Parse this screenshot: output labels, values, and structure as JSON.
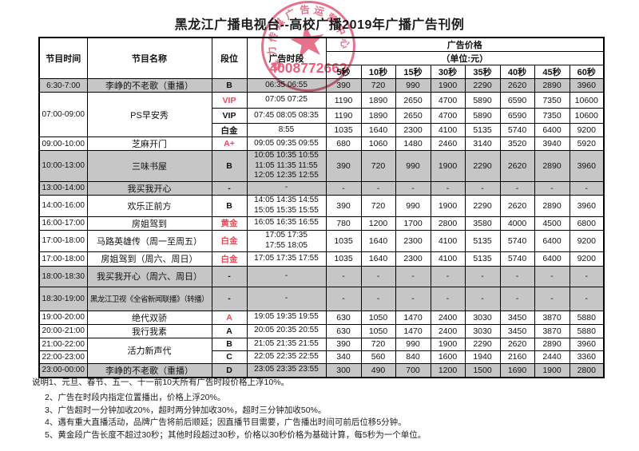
{
  "page_title": "黑龙江广播电视台--高校广播2019年广播广告刊例",
  "stamp": {
    "ring_text": "媒力传媒广告运营中心",
    "phone": "4008772662",
    "color": "#e0607a"
  },
  "table": {
    "headers": {
      "time": "节目时间",
      "name": "节目名称",
      "tier": "段位",
      "slot": "广告时段",
      "price_group": "广告价格",
      "price_unit": "（单位:元）",
      "durations": [
        "5秒",
        "10秒",
        "15秒",
        "30秒",
        "35秒",
        "40秒",
        "45秒",
        "60秒"
      ]
    },
    "rows": [
      {
        "time": "6:30-7:00",
        "name": "李峥的不老歌（重播）",
        "tier": "B",
        "slots": [
          "06:35  06:55"
        ],
        "prices": [
          "390",
          "720",
          "990",
          "1900",
          "2290",
          "2620",
          "2890",
          "3960"
        ],
        "shaded": true,
        "group": true
      },
      {
        "time": "07:00-09:00",
        "time_span": 3,
        "name": "PS早安秀",
        "name_span": 3,
        "tier": "VIP",
        "tier_red": true,
        "slots": [
          "07:05  07:25"
        ],
        "prices": [
          "1190",
          "1890",
          "2650",
          "4700",
          "5890",
          "6590",
          "7350",
          "10600"
        ],
        "group": true
      },
      {
        "tier": "VIP",
        "slots": [
          "07:45 08:05 08:35"
        ],
        "prices": [
          "1190",
          "1890",
          "2650",
          "4700",
          "5890",
          "6590",
          "7350",
          "10600"
        ]
      },
      {
        "tier": "白金",
        "slots": [
          "8:55"
        ],
        "prices": [
          "1035",
          "1640",
          "2300",
          "4100",
          "5135",
          "5740",
          "6400",
          "9200"
        ]
      },
      {
        "time": "09:00-10:00",
        "name": "芝麻开门",
        "tier": "A+",
        "tier_red": true,
        "slots": [
          "09:05 09:35 09:55"
        ],
        "prices": [
          "680",
          "1060",
          "1480",
          "2460",
          "3140",
          "3520",
          "3940",
          "5920"
        ],
        "group": true
      },
      {
        "time": "10:00-13:00",
        "name": "三味书屋",
        "tier": "B",
        "slots": [
          "10:05 10:35 10:55",
          "11:05 11:35 11:55",
          "12:05 12:35 12:55"
        ],
        "prices": [
          "390",
          "720",
          "990",
          "1900",
          "2290",
          "2620",
          "2890",
          "3960"
        ],
        "shaded": true,
        "group": true
      },
      {
        "time": "13:00-14:00",
        "name": "我买我开心",
        "tier": "-",
        "slots": [
          "-"
        ],
        "prices": [
          "-",
          "-",
          "-",
          "-",
          "-",
          "-",
          "-",
          "-"
        ],
        "shaded": true,
        "group": true
      },
      {
        "time": "14:00-16:00",
        "name": "欢乐正前方",
        "tier": "B",
        "slots": [
          "14:05 14:35 14:55",
          "15:05  15:35 15:55"
        ],
        "prices": [
          "390",
          "720",
          "990",
          "1900",
          "2290",
          "2620",
          "2890",
          "3960"
        ],
        "group": true
      },
      {
        "time": "16:00-17:00",
        "name": "房姐驾到",
        "tier": "黄金",
        "tier_red": true,
        "slots": [
          "16:05 16:35  16:55"
        ],
        "prices": [
          "780",
          "1200",
          "1700",
          "2800",
          "3580",
          "4000",
          "4500",
          "6800"
        ],
        "group": true
      },
      {
        "time": "17:00-18:00",
        "name": "马路英雄传（周一至周五）",
        "tier": "白金",
        "tier_red": true,
        "slots": [
          "17:05  17:35",
          "17:55  18:05"
        ],
        "prices": [
          "1035",
          "1640",
          "2300",
          "4100",
          "5135",
          "5740",
          "6400",
          "9200"
        ],
        "group": true
      },
      {
        "time": "17:00-18:00",
        "name": "房姐驾到（周六、周日）",
        "tier": "白金",
        "tier_red": true,
        "slots": [
          "17:05 17:35 17:55"
        ],
        "prices": [
          "1035",
          "1640",
          "2300",
          "4100",
          "5135",
          "5740",
          "6400",
          "9200"
        ],
        "group": true
      },
      {
        "time": "18:00-18:30",
        "name": "我买我开心（周六、周日）",
        "tier": "-",
        "slots": [
          "-"
        ],
        "prices": [
          "-",
          "-",
          "-",
          "-",
          "-",
          "-",
          "-",
          "-"
        ],
        "shaded": true,
        "group": true
      },
      {
        "time": "18:30-19:00",
        "name": "黑龙江卫视《全省新闻联播》（转播）",
        "name_small": true,
        "tier": "-",
        "slots": [
          "-"
        ],
        "prices": [
          "-",
          "-",
          "-",
          "-",
          "-",
          "-",
          "-",
          "-"
        ],
        "shaded": true,
        "group": true
      },
      {
        "time": "19:00-20:00",
        "name": "绝代双骄",
        "tier": "A",
        "tier_red": true,
        "slots": [
          "19:05 19:35 19:55"
        ],
        "prices": [
          "630",
          "1050",
          "1470",
          "2400",
          "3030",
          "3450",
          "3870",
          "5880"
        ],
        "group": true
      },
      {
        "time": "20:00-21:00",
        "name": "我行我素",
        "tier": "A",
        "slots": [
          "20:05 20:35 20:55"
        ],
        "prices": [
          "630",
          "1050",
          "1470",
          "2400",
          "3030",
          "3450",
          "3870",
          "5880"
        ],
        "group": true
      },
      {
        "time": "21:00-22:00",
        "name": "活力新声代",
        "name_span": 2,
        "tier": "B",
        "slots": [
          "21:05 21:35 21:55"
        ],
        "prices": [
          "390",
          "720",
          "990",
          "1900",
          "2290",
          "2620",
          "2890",
          "3960"
        ],
        "group": true
      },
      {
        "time": "22:00-23:00",
        "tier": "C",
        "slots": [
          "22:05 22:35 22:55"
        ],
        "prices": [
          "340",
          "560",
          "840",
          "1600",
          "1940",
          "2160",
          "2440",
          "3360"
        ]
      },
      {
        "time": "23:00-00:00",
        "name": "李峥的不老歌（重播）",
        "tier": "D",
        "slots": [
          "23:05 23:35 23:55"
        ],
        "prices": [
          "300",
          "490",
          "700",
          "1200",
          "1500",
          "1690",
          "1900",
          "2800"
        ],
        "shaded": true,
        "group": true
      }
    ]
  },
  "notes": [
    "说明1、元旦、春节、五一、十一前10天所有广告时段价格上浮10%。",
    "2、广告在时段内指定位置播出，价格上浮20%。",
    "3、广告超时一分钟加收20%，超时两分钟加收30%，超时三分钟加收50%。",
    "4、遇有重大直播活动，品牌广告将前后顺延；因直播节目需要，广告播出时间可前后位移5分钟。",
    "5、黄金段广告长度不超过30秒；其他时段超过30秒，价格以30秒价格为基础计算，每5秒为一个单位。"
  ]
}
